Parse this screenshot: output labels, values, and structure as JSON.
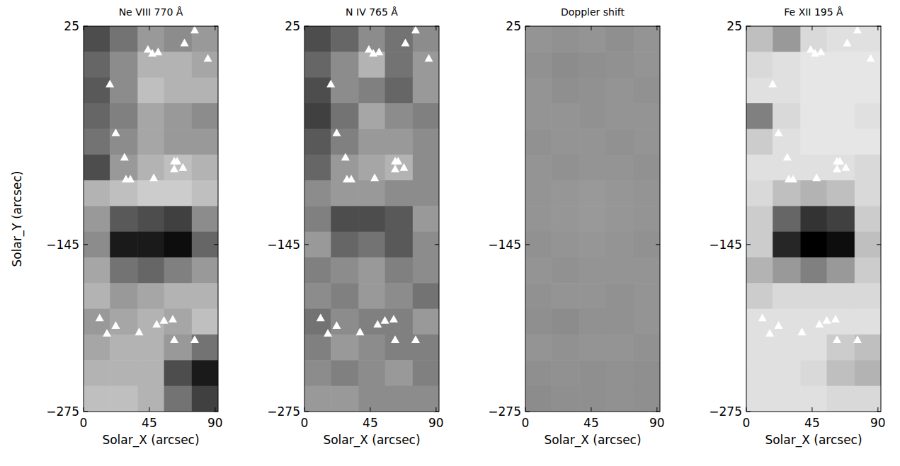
{
  "chart_data": [
    {
      "type": "heatmap",
      "title": "Ne VIII 770 Å",
      "xlabel": "Solar_X (arcsec)",
      "ylabel": "Solar_Y (arcsec)",
      "xlim": [
        0,
        92
      ],
      "ylim": [
        -275,
        25
      ],
      "xticks": [
        0,
        45,
        90
      ],
      "yticks": [
        {
          "value": -275,
          "label": "−275"
        },
        {
          "value": -145,
          "label": "−145"
        },
        25
      ],
      "zlim": [
        0,
        100
      ],
      "cell_x_edges": [
        0,
        18,
        37,
        55,
        74,
        92
      ],
      "cell_y_edges": [
        25,
        5,
        -15,
        -35,
        -55,
        -75,
        -95,
        -115,
        -135,
        -155,
        -175,
        -195,
        -215,
        -235,
        -255,
        -275
      ],
      "cells": [
        [
          30,
          45,
          60,
          55,
          60
        ],
        [
          40,
          55,
          70,
          70,
          65
        ],
        [
          35,
          55,
          75,
          70,
          70
        ],
        [
          40,
          50,
          65,
          60,
          55
        ],
        [
          45,
          55,
          65,
          60,
          60
        ],
        [
          30,
          60,
          70,
          75,
          70
        ],
        [
          70,
          75,
          80,
          80,
          75
        ],
        [
          60,
          35,
          30,
          25,
          55
        ],
        [
          55,
          10,
          10,
          5,
          40
        ],
        [
          65,
          45,
          40,
          50,
          60
        ],
        [
          70,
          60,
          65,
          70,
          70
        ],
        [
          60,
          65,
          70,
          65,
          75
        ],
        [
          65,
          70,
          70,
          60,
          45
        ],
        [
          70,
          70,
          70,
          30,
          10
        ],
        [
          75,
          75,
          70,
          45,
          25
        ]
      ],
      "series": [
        {
          "type": "scatter",
          "marker": "triangle",
          "color": "#ffffff",
          "x": [
            44,
            47,
            51,
            69,
            76,
            85,
            18,
            22,
            28,
            29,
            32,
            48,
            62,
            64,
            62,
            68,
            11,
            16,
            22,
            38,
            50,
            55,
            61,
            62,
            76
          ],
          "values": [
            7,
            4,
            5,
            12,
            22,
            0,
            -20,
            -58,
            -77,
            -94,
            -94,
            -93,
            -80,
            -80,
            -86,
            -85,
            -202,
            -214,
            -208,
            -213,
            -207,
            -204,
            -203,
            -219,
            -219
          ]
        }
      ]
    },
    {
      "type": "heatmap",
      "title": "N IV 765 Å",
      "xlabel": "Solar_X (arcsec)",
      "xlim": [
        0,
        92
      ],
      "ylim": [
        -275,
        25
      ],
      "xticks": [
        0,
        45,
        90
      ],
      "yticks": [
        {
          "value": -275,
          "label": "−275"
        },
        {
          "value": -145,
          "label": "−145"
        },
        25
      ],
      "zlim": [
        0,
        100
      ],
      "cell_x_edges": [
        0,
        18,
        37,
        55,
        74,
        92
      ],
      "cell_y_edges": [
        25,
        5,
        -15,
        -35,
        -55,
        -75,
        -95,
        -115,
        -135,
        -155,
        -175,
        -195,
        -215,
        -235,
        -255,
        -275
      ],
      "cells": [
        [
          30,
          40,
          55,
          45,
          55
        ],
        [
          40,
          55,
          70,
          45,
          60
        ],
        [
          30,
          55,
          50,
          40,
          60
        ],
        [
          25,
          45,
          65,
          55,
          50
        ],
        [
          35,
          50,
          60,
          60,
          55
        ],
        [
          40,
          60,
          65,
          70,
          55
        ],
        [
          55,
          60,
          60,
          55,
          55
        ],
        [
          50,
          30,
          30,
          35,
          60
        ],
        [
          60,
          40,
          45,
          35,
          55
        ],
        [
          50,
          55,
          60,
          50,
          55
        ],
        [
          55,
          50,
          60,
          55,
          45
        ],
        [
          45,
          55,
          50,
          50,
          60
        ],
        [
          50,
          60,
          55,
          50,
          50
        ],
        [
          55,
          50,
          55,
          60,
          50
        ],
        [
          60,
          60,
          55,
          55,
          55
        ]
      ],
      "series": [
        {
          "type": "scatter",
          "marker": "triangle",
          "color": "#ffffff",
          "x": [
            44,
            47,
            51,
            69,
            76,
            85,
            18,
            22,
            28,
            29,
            32,
            48,
            62,
            64,
            62,
            68,
            11,
            16,
            22,
            38,
            50,
            55,
            61,
            62,
            76
          ],
          "values": [
            7,
            4,
            5,
            12,
            22,
            0,
            -20,
            -58,
            -77,
            -94,
            -94,
            -93,
            -80,
            -80,
            -86,
            -85,
            -202,
            -214,
            -208,
            -213,
            -207,
            -204,
            -203,
            -219,
            -219
          ]
        }
      ]
    },
    {
      "type": "heatmap",
      "title": "Doppler shift",
      "xlabel": "Solar_X (arcsec)",
      "xlim": [
        0,
        92
      ],
      "ylim": [
        -275,
        25
      ],
      "xticks": [
        0,
        45,
        90
      ],
      "yticks": [
        {
          "value": -275,
          "label": "−275"
        },
        {
          "value": -145,
          "label": "−145"
        },
        25
      ],
      "zlim": [
        0,
        100
      ],
      "cell_x_edges": [
        0,
        18,
        37,
        55,
        74,
        92
      ],
      "cell_y_edges": [
        25,
        5,
        -15,
        -35,
        -55,
        -75,
        -95,
        -115,
        -135,
        -155,
        -175,
        -195,
        -215,
        -235,
        -255,
        -275
      ],
      "cells": [
        [
          58,
          57,
          58,
          56,
          58
        ],
        [
          57,
          55,
          56,
          57,
          58
        ],
        [
          58,
          56,
          57,
          58,
          57
        ],
        [
          58,
          58,
          57,
          58,
          58
        ],
        [
          57,
          58,
          58,
          57,
          58
        ],
        [
          58,
          57,
          58,
          58,
          57
        ],
        [
          58,
          59,
          60,
          59,
          58
        ],
        [
          58,
          59,
          60,
          59,
          58
        ],
        [
          57,
          58,
          59,
          58,
          57
        ],
        [
          58,
          57,
          58,
          58,
          58
        ],
        [
          57,
          58,
          58,
          57,
          58
        ],
        [
          56,
          55,
          57,
          57,
          58
        ],
        [
          58,
          57,
          58,
          58,
          57
        ],
        [
          56,
          57,
          56,
          57,
          56
        ],
        [
          55,
          56,
          56,
          57,
          56
        ]
      ],
      "series": []
    },
    {
      "type": "heatmap",
      "title": "Fe XII 195 Å",
      "xlabel": "Solar_X (arcsec)",
      "xlim": [
        0,
        92
      ],
      "ylim": [
        -275,
        25
      ],
      "xticks": [
        0,
        45,
        90
      ],
      "yticks": [
        {
          "value": -275,
          "label": "−275"
        },
        {
          "value": -145,
          "label": "−145"
        },
        25
      ],
      "zlim": [
        0,
        100
      ],
      "cell_x_edges": [
        0,
        18,
        37,
        55,
        74,
        92
      ],
      "cell_y_edges": [
        25,
        5,
        -15,
        -35,
        -55,
        -75,
        -95,
        -115,
        -135,
        -155,
        -175,
        -195,
        -215,
        -235,
        -255,
        -275
      ],
      "cells": [
        [
          75,
          60,
          85,
          88,
          88
        ],
        [
          85,
          88,
          90,
          90,
          90
        ],
        [
          88,
          88,
          90,
          90,
          90
        ],
        [
          50,
          85,
          90,
          90,
          88
        ],
        [
          80,
          88,
          90,
          90,
          90
        ],
        [
          88,
          88,
          88,
          88,
          85
        ],
        [
          85,
          75,
          70,
          75,
          85
        ],
        [
          80,
          40,
          20,
          25,
          80
        ],
        [
          80,
          15,
          0,
          5,
          75
        ],
        [
          70,
          60,
          50,
          60,
          80
        ],
        [
          80,
          85,
          85,
          85,
          85
        ],
        [
          88,
          88,
          88,
          88,
          88
        ],
        [
          88,
          88,
          88,
          80,
          75
        ],
        [
          88,
          88,
          85,
          75,
          70
        ],
        [
          88,
          88,
          88,
          85,
          85
        ]
      ],
      "series": [
        {
          "type": "scatter",
          "marker": "triangle",
          "color": "#ffffff",
          "x": [
            44,
            47,
            51,
            69,
            76,
            85,
            18,
            22,
            28,
            29,
            32,
            48,
            62,
            64,
            62,
            68,
            11,
            16,
            22,
            38,
            50,
            55,
            61,
            62,
            76
          ],
          "values": [
            7,
            4,
            5,
            12,
            22,
            0,
            -20,
            -58,
            -77,
            -94,
            -94,
            -93,
            -80,
            -80,
            -86,
            -85,
            -202,
            -214,
            -208,
            -213,
            -207,
            -204,
            -203,
            -219,
            -219
          ]
        }
      ]
    }
  ]
}
